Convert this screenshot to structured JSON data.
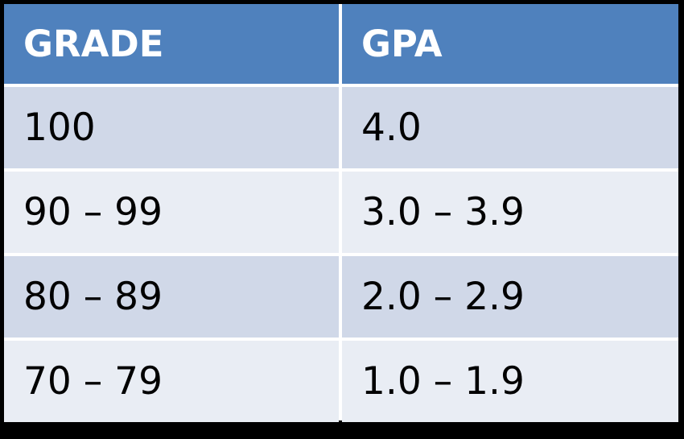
{
  "table": {
    "headers": [
      "GRADE",
      "GPA"
    ],
    "rows": [
      [
        "100",
        "4.0"
      ],
      [
        "90 – 99",
        "3.0 – 3.9"
      ],
      [
        "80 – 89",
        "2.0 – 2.9"
      ],
      [
        "70 – 79",
        "1.0 – 1.9"
      ]
    ]
  },
  "colors": {
    "header_bg": "#4f81bd",
    "row_dark_bg": "#d0d8e8",
    "row_light_bg": "#e9edf4",
    "frame": "#000000"
  }
}
